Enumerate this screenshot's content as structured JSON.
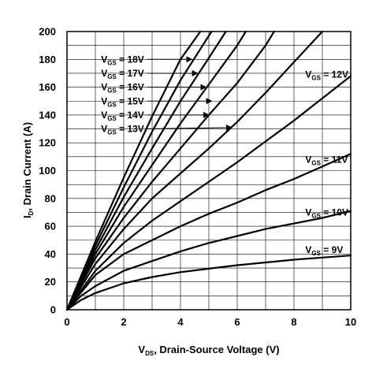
{
  "chart_data": {
    "type": "line",
    "title": "",
    "xlabel": {
      "main": "V",
      "sub": "DS",
      "rest": ", Drain-Source Voltage (V)"
    },
    "ylabel": {
      "main": "I",
      "sub": "D",
      "rest": ", Drain Current (A)"
    },
    "xlim": [
      0,
      10
    ],
    "ylim": [
      0,
      200
    ],
    "xticks": [
      "0",
      "2",
      "4",
      "6",
      "8",
      "10"
    ],
    "yticks": [
      "0",
      "20",
      "40",
      "60",
      "80",
      "100",
      "120",
      "140",
      "160",
      "180",
      "200"
    ],
    "grid": true,
    "series": [
      {
        "name": "9V",
        "label_main": "V",
        "label_sub": "GS",
        "label_rest": " = 9V",
        "x": [
          0,
          0.5,
          1,
          2,
          3,
          4,
          5,
          6,
          7,
          8,
          9,
          10
        ],
        "y": [
          0,
          7,
          12,
          19,
          23.5,
          27,
          29.5,
          32,
          34,
          36,
          37.5,
          39
        ]
      },
      {
        "name": "10V",
        "label_main": "V",
        "label_sub": "GS",
        "label_rest": " = 10V",
        "x": [
          0,
          0.5,
          1,
          2,
          3,
          4,
          5,
          6,
          7,
          8,
          9,
          10
        ],
        "y": [
          0,
          10,
          17,
          28,
          35,
          42,
          48,
          53,
          58,
          62,
          66,
          71
        ]
      },
      {
        "name": "11V",
        "label_main": "V",
        "label_sub": "GS",
        "label_rest": " = 11V",
        "x": [
          0,
          1,
          2,
          3,
          4,
          5,
          6,
          7,
          8,
          9,
          10
        ],
        "y": [
          0,
          25,
          40,
          50,
          60,
          69,
          77,
          86,
          94,
          103,
          112
        ]
      },
      {
        "name": "12V",
        "label_main": "V",
        "label_sub": "GS",
        "label_rest": " = 12V",
        "x": [
          0,
          1,
          2,
          3,
          4,
          5,
          6,
          7,
          8,
          9,
          10
        ],
        "y": [
          0,
          28,
          48,
          64,
          78,
          92,
          106,
          121,
          136,
          152,
          168
        ]
      },
      {
        "name": "13V",
        "label_main": "V",
        "label_sub": "GS",
        "label_rest": " = 13V",
        "x": [
          0,
          1,
          2,
          3,
          4,
          5,
          6,
          7,
          8,
          9
        ],
        "y": [
          0,
          33,
          58,
          80,
          98,
          116,
          135,
          156,
          178,
          200
        ]
      },
      {
        "name": "14V",
        "label_main": "V",
        "label_sub": "GS",
        "label_rest": " = 14V",
        "x": [
          0,
          1,
          2,
          3,
          4,
          5,
          6,
          7,
          7.3
        ],
        "y": [
          0,
          37,
          66,
          92,
          116,
          140,
          163,
          190,
          200
        ]
      },
      {
        "name": "15V",
        "label_main": "V",
        "label_sub": "GS",
        "label_rest": " = 15V",
        "x": [
          0,
          1,
          2,
          3,
          4,
          5,
          6,
          6.3
        ],
        "y": [
          0,
          40,
          74,
          104,
          134,
          162,
          190,
          200
        ]
      },
      {
        "name": "16V",
        "label_main": "V",
        "label_sub": "GS",
        "label_rest": " = 16V",
        "x": [
          0,
          1,
          2,
          3,
          4,
          5,
          5.6
        ],
        "y": [
          0,
          43,
          81,
          116,
          150,
          181,
          200
        ]
      },
      {
        "name": "17V",
        "label_main": "V",
        "label_sub": "GS",
        "label_rest": " = 17V",
        "x": [
          0,
          1,
          2,
          3,
          4,
          5,
          5.1
        ],
        "y": [
          0,
          46,
          88,
          128,
          165,
          197,
          200
        ]
      },
      {
        "name": "18V",
        "label_main": "V",
        "label_sub": "GS",
        "label_rest": " = 18V",
        "x": [
          0,
          1,
          2,
          3,
          4,
          4.7
        ],
        "y": [
          0,
          49,
          95,
          139,
          180,
          200
        ]
      }
    ],
    "annotations": [
      {
        "series": "18V",
        "arrow": true,
        "label_at": [
          1.2,
          180
        ],
        "points_to": [
          4.4,
          180
        ]
      },
      {
        "series": "17V",
        "arrow": true,
        "label_at": [
          1.2,
          170
        ],
        "points_to": [
          4.6,
          170
        ]
      },
      {
        "series": "16V",
        "arrow": true,
        "label_at": [
          1.2,
          160
        ],
        "points_to": [
          4.9,
          160
        ]
      },
      {
        "series": "15V",
        "arrow": true,
        "label_at": [
          1.2,
          150
        ],
        "points_to": [
          5.1,
          150
        ]
      },
      {
        "series": "14V",
        "arrow": true,
        "label_at": [
          1.2,
          140
        ],
        "points_to": [
          5.0,
          140
        ]
      },
      {
        "series": "13V",
        "arrow": true,
        "label_at": [
          1.2,
          130
        ],
        "points_to": [
          5.8,
          131
        ]
      },
      {
        "series": "12V",
        "arrow": false,
        "label_at": [
          8.4,
          169
        ]
      },
      {
        "series": "11V",
        "arrow": false,
        "label_at": [
          8.4,
          108
        ]
      },
      {
        "series": "10V",
        "arrow": false,
        "label_at": [
          8.4,
          70
        ]
      },
      {
        "series": "9V",
        "arrow": false,
        "label_at": [
          8.4,
          43
        ]
      }
    ]
  }
}
